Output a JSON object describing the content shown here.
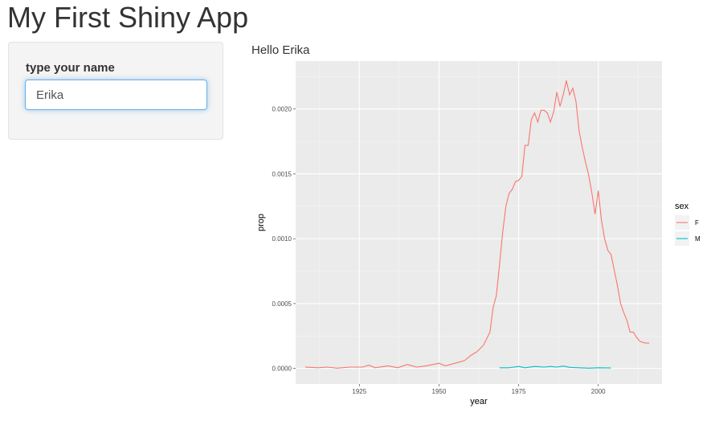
{
  "app": {
    "title": "My First Shiny App"
  },
  "sidebar": {
    "name_input": {
      "label": "type your name",
      "value": "Erika"
    }
  },
  "main": {
    "greeting": "Hello Erika"
  },
  "chart_data": {
    "type": "line",
    "title": "",
    "xlabel": "year",
    "ylabel": "prop",
    "xlim": [
      1905,
      2020
    ],
    "ylim": [
      -0.00012,
      0.00237
    ],
    "x_ticks": [
      1925,
      1950,
      1975,
      2000
    ],
    "x_tick_labels": [
      "1925",
      "1950",
      "1975",
      "2000"
    ],
    "y_ticks": [
      0,
      0.0005,
      0.001,
      0.0015,
      0.002
    ],
    "y_tick_labels": [
      "0.0000",
      "0.0005",
      "0.0010",
      "0.0015",
      "0.0020"
    ],
    "grid": true,
    "legend": {
      "title": "sex",
      "position": "right"
    },
    "series": [
      {
        "name": "F",
        "color": "#f8766d",
        "points": [
          [
            1908,
            1e-05
          ],
          [
            1912,
            5e-06
          ],
          [
            1915,
            1e-05
          ],
          [
            1918,
            2e-06
          ],
          [
            1922,
            1e-05
          ],
          [
            1926,
            1e-05
          ],
          [
            1928,
            2.5e-05
          ],
          [
            1930,
            5e-06
          ],
          [
            1934,
            2e-05
          ],
          [
            1937,
            5e-06
          ],
          [
            1940,
            3e-05
          ],
          [
            1943,
            1e-05
          ],
          [
            1946,
            2e-05
          ],
          [
            1950,
            4e-05
          ],
          [
            1952,
            2e-05
          ],
          [
            1955,
            4e-05
          ],
          [
            1958,
            6e-05
          ],
          [
            1960,
            0.0001
          ],
          [
            1962,
            0.00013
          ],
          [
            1964,
            0.00018
          ],
          [
            1966,
            0.00028
          ],
          [
            1967,
            0.00047
          ],
          [
            1968,
            0.00056
          ],
          [
            1969,
            0.0008
          ],
          [
            1970,
            0.00105
          ],
          [
            1971,
            0.00125
          ],
          [
            1972,
            0.00135
          ],
          [
            1973,
            0.00138
          ],
          [
            1974,
            0.00144
          ],
          [
            1975,
            0.00145
          ],
          [
            1976,
            0.00148
          ],
          [
            1977,
            0.00172
          ],
          [
            1978,
            0.00172
          ],
          [
            1979,
            0.00192
          ],
          [
            1980,
            0.00197
          ],
          [
            1981,
            0.0019
          ],
          [
            1982,
            0.00199
          ],
          [
            1983,
            0.00199
          ],
          [
            1984,
            0.00197
          ],
          [
            1985,
            0.0019
          ],
          [
            1986,
            0.00198
          ],
          [
            1987,
            0.00213
          ],
          [
            1988,
            0.00202
          ],
          [
            1989,
            0.00211
          ],
          [
            1990,
            0.00222
          ],
          [
            1991,
            0.00211
          ],
          [
            1992,
            0.00216
          ],
          [
            1993,
            0.00206
          ],
          [
            1994,
            0.00183
          ],
          [
            1995,
            0.0017
          ],
          [
            1996,
            0.00159
          ],
          [
            1997,
            0.00149
          ],
          [
            1998,
            0.00135
          ],
          [
            1999,
            0.00119
          ],
          [
            2000,
            0.00137
          ],
          [
            2001,
            0.00114
          ],
          [
            2002,
            0.001
          ],
          [
            2003,
            0.00091
          ],
          [
            2004,
            0.00088
          ],
          [
            2005,
            0.00076
          ],
          [
            2006,
            0.00064
          ],
          [
            2007,
            0.0005
          ],
          [
            2008,
            0.00043
          ],
          [
            2009,
            0.00037
          ],
          [
            2010,
            0.00028
          ],
          [
            2011,
            0.00028
          ],
          [
            2012,
            0.00024
          ],
          [
            2013,
            0.00021
          ],
          [
            2014,
            0.0002
          ],
          [
            2015,
            0.000195
          ],
          [
            2016,
            0.000195
          ]
        ]
      },
      {
        "name": "M",
        "color": "#00bfc4",
        "points": [
          [
            1969,
            5e-06
          ],
          [
            1972,
            5e-06
          ],
          [
            1975,
            1.5e-05
          ],
          [
            1977,
            5e-06
          ],
          [
            1980,
            1.5e-05
          ],
          [
            1983,
            1e-05
          ],
          [
            1985,
            1.5e-05
          ],
          [
            1987,
            1e-05
          ],
          [
            1989,
            1.8e-05
          ],
          [
            1991,
            8e-06
          ],
          [
            1994,
            5e-06
          ],
          [
            1997,
            2e-06
          ],
          [
            2000,
            5e-06
          ],
          [
            2004,
            3e-06
          ]
        ]
      }
    ]
  }
}
